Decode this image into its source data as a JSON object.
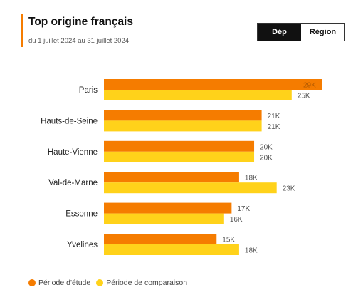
{
  "header": {
    "title": "Top origine français",
    "subtitle": "du 1 juillet 2024 au 31 juillet 2024"
  },
  "toggle": {
    "options": [
      {
        "label": "Dép",
        "active": true
      },
      {
        "label": "Région",
        "active": false
      }
    ]
  },
  "colors": {
    "accent": "#f57c00",
    "series_etude": "#f57c00",
    "series_comparaison": "#ffd21a"
  },
  "chart_data": {
    "type": "bar",
    "orientation": "horizontal",
    "categories": [
      "Paris",
      "Hauts-de-Seine",
      "Haute-Vienne",
      "Val-de-Marne",
      "Essonne",
      "Yvelines"
    ],
    "series": [
      {
        "name": "Période d'étude",
        "color": "#f57c00",
        "values": [
          29000,
          21000,
          20000,
          18000,
          17000,
          15000
        ],
        "labels": [
          "29K",
          "21K",
          "20K",
          "18K",
          "17K",
          "15K"
        ]
      },
      {
        "name": "Période de comparaison",
        "color": "#ffd21a",
        "values": [
          25000,
          21000,
          20000,
          23000,
          16000,
          18000
        ],
        "labels": [
          "25K",
          "21K",
          "20K",
          "23K",
          "16K",
          "18K"
        ]
      }
    ],
    "xlim": [
      0,
      29000
    ],
    "grid": false,
    "legend_position": "bottom-left"
  }
}
